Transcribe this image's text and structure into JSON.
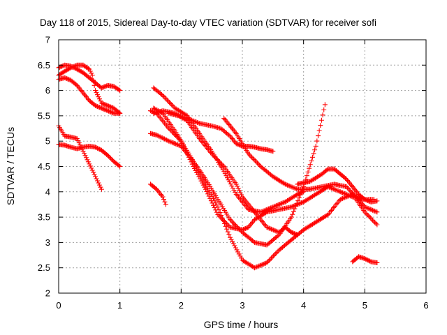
{
  "chart_data": {
    "type": "scatter",
    "title": "Day 118 of 2015, Sidereal Day-to-day VTEC variation (SDTVAR) for receiver sofi",
    "xlabel": "GPS time / hours",
    "ylabel": "SDTVAR / TECUs",
    "xlim": [
      0,
      6
    ],
    "ylim": [
      2,
      7
    ],
    "xticks": [
      "0",
      "1",
      "2",
      "3",
      "4",
      "5",
      "6"
    ],
    "yticks": [
      "2",
      "2.5",
      "3",
      "3.5",
      "4",
      "4.5",
      "5",
      "5.5",
      "6",
      "6.5",
      "7"
    ],
    "grid": true,
    "marker": "plus",
    "color": "#ff0000",
    "series": [
      {
        "x": [
          0.0,
          0.1,
          0.2,
          0.3,
          0.4,
          0.5,
          0.6,
          0.7,
          0.8,
          0.9,
          1.0
        ],
        "y": [
          6.45,
          6.5,
          6.48,
          6.42,
          6.35,
          6.25,
          6.15,
          6.05,
          6.1,
          6.08,
          6.0
        ]
      },
      {
        "x": [
          0.0,
          0.1,
          0.2,
          0.3,
          0.4,
          0.5,
          0.55,
          0.6,
          0.7,
          0.8,
          0.9,
          1.0
        ],
        "y": [
          6.3,
          6.38,
          6.45,
          6.5,
          6.5,
          6.42,
          6.3,
          6.0,
          5.75,
          5.7,
          5.65,
          5.55
        ]
      },
      {
        "x": [
          0.0,
          0.1,
          0.2,
          0.3,
          0.4,
          0.5,
          0.6,
          0.7,
          0.8,
          0.9,
          1.0
        ],
        "y": [
          6.22,
          6.25,
          6.2,
          6.1,
          5.95,
          5.8,
          5.7,
          5.65,
          5.6,
          5.55,
          5.55
        ]
      },
      {
        "x": [
          0.0,
          0.1,
          0.2,
          0.3,
          0.4,
          0.5,
          0.6,
          0.7
        ],
        "y": [
          5.3,
          5.1,
          5.08,
          5.05,
          4.8,
          4.55,
          4.3,
          4.05
        ]
      },
      {
        "x": [
          0.0,
          0.1,
          0.2,
          0.3,
          0.4,
          0.5,
          0.6,
          0.7,
          0.8,
          0.9,
          1.0
        ],
        "y": [
          4.93,
          4.92,
          4.88,
          4.85,
          4.88,
          4.9,
          4.88,
          4.82,
          4.72,
          4.6,
          4.5
        ]
      },
      {
        "x": [
          1.5,
          1.6,
          1.7,
          1.75
        ],
        "y": [
          4.15,
          4.05,
          3.9,
          3.75
        ]
      },
      {
        "x": [
          1.5,
          1.6,
          1.8,
          2.0,
          2.2,
          2.4,
          2.6,
          2.8,
          3.0,
          3.2,
          3.4,
          3.6,
          3.8,
          4.0,
          4.2,
          4.35
        ],
        "y": [
          5.15,
          5.12,
          5.0,
          4.9,
          4.6,
          4.25,
          3.85,
          3.45,
          3.2,
          3.0,
          2.95,
          3.15,
          3.5,
          4.1,
          4.9,
          5.72
        ]
      },
      {
        "x": [
          1.5,
          1.6,
          1.8,
          2.0,
          2.2,
          2.4,
          2.6,
          2.8,
          3.0,
          3.1,
          3.2,
          3.4,
          3.6,
          3.8,
          4.0,
          4.2,
          4.4,
          4.6,
          4.8,
          5.0,
          5.15
        ],
        "y": [
          5.6,
          5.55,
          5.25,
          5.0,
          4.5,
          4.05,
          3.55,
          3.3,
          3.25,
          3.3,
          3.45,
          3.6,
          3.65,
          3.7,
          3.8,
          3.95,
          4.1,
          4.0,
          3.9,
          3.85,
          3.85
        ]
      },
      {
        "x": [
          1.55,
          1.7,
          1.9,
          2.0,
          2.2,
          2.4,
          2.6,
          2.8,
          3.0,
          3.2,
          3.4,
          3.6,
          3.8,
          4.0,
          4.2,
          4.4,
          4.6,
          4.8,
          5.0,
          5.2
        ],
        "y": [
          5.65,
          5.55,
          5.2,
          5.0,
          4.6,
          4.15,
          3.7,
          3.1,
          2.65,
          2.5,
          2.6,
          2.85,
          3.05,
          3.25,
          3.4,
          3.55,
          3.85,
          3.95,
          3.6,
          3.35
        ]
      },
      {
        "x": [
          1.55,
          1.7,
          1.9,
          2.1,
          2.3,
          2.5,
          2.7,
          2.9,
          3.0,
          3.2,
          3.4,
          3.6,
          3.7,
          3.8,
          3.9
        ],
        "y": [
          5.55,
          5.6,
          5.55,
          5.4,
          5.05,
          4.75,
          4.5,
          4.15,
          3.9,
          3.6,
          3.3,
          3.2,
          3.3,
          3.2,
          3.15
        ]
      },
      {
        "x": [
          1.55,
          1.7,
          1.9,
          2.1,
          2.3,
          2.5,
          2.7,
          2.9,
          3.1,
          3.3,
          3.5,
          3.7,
          3.9,
          4.0
        ],
        "y": [
          6.05,
          5.9,
          5.65,
          5.5,
          5.15,
          4.8,
          4.4,
          3.95,
          3.65,
          3.6,
          3.7,
          3.8,
          3.95,
          4.0
        ]
      },
      {
        "x": [
          1.8,
          1.95,
          2.1,
          2.3,
          2.5,
          2.65,
          2.8,
          2.9,
          3.0,
          3.1,
          3.2,
          3.3,
          3.4,
          3.5
        ],
        "y": [
          5.55,
          5.5,
          5.45,
          5.35,
          5.3,
          5.25,
          5.1,
          4.95,
          4.9,
          4.9,
          4.88,
          4.85,
          4.83,
          4.8
        ]
      },
      {
        "x": [
          2.7,
          2.8,
          2.9,
          3.0,
          3.1,
          3.3,
          3.5,
          3.7,
          3.9,
          4.1,
          4.3,
          4.5,
          4.7,
          4.9,
          5.0,
          5.2
        ],
        "y": [
          5.45,
          5.3,
          5.15,
          4.95,
          4.75,
          4.5,
          4.3,
          4.15,
          4.05,
          4.05,
          4.1,
          4.15,
          4.1,
          3.85,
          3.7,
          3.6
        ]
      },
      {
        "x": [
          3.9,
          4.0,
          4.1,
          4.3,
          4.4,
          4.5,
          4.6,
          4.7,
          4.8,
          4.9,
          5.0,
          5.1,
          5.2
        ],
        "y": [
          4.15,
          4.18,
          4.2,
          4.35,
          4.45,
          4.45,
          4.35,
          4.25,
          4.1,
          3.95,
          3.85,
          3.8,
          3.82
        ]
      },
      {
        "x": [
          4.8,
          4.9,
          5.0,
          5.1,
          5.2
        ],
        "y": [
          2.62,
          2.72,
          2.68,
          2.62,
          2.6
        ]
      }
    ]
  }
}
